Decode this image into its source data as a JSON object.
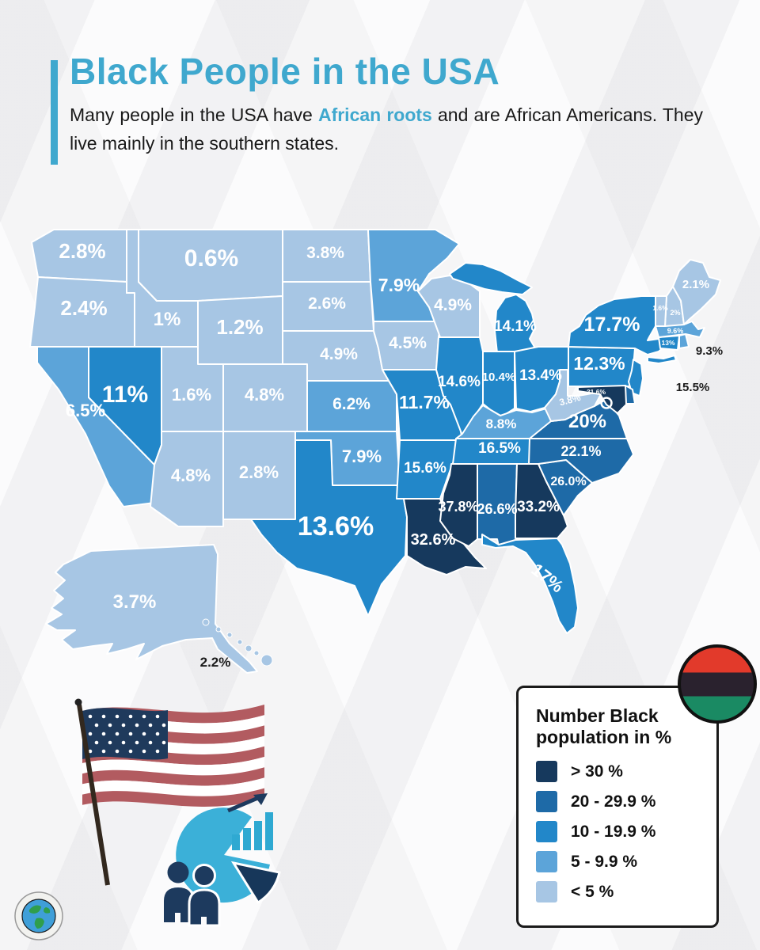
{
  "header": {
    "title": "Black People in the USA",
    "subtitle_part1": "Many people in the USA have ",
    "subtitle_highlight": "African roots",
    "subtitle_part2": " and are African Americans. They live mainly in the southern states."
  },
  "legend": {
    "title_line1": "Number Black",
    "title_line2": "population in %",
    "items": [
      {
        "label": "> 30 %",
        "color": "#16395d"
      },
      {
        "label": "20 - 29.9 %",
        "color": "#1e6aa7"
      },
      {
        "label": "10 - 19.9 %",
        "color": "#2287c9"
      },
      {
        "label": "5 - 9.9 %",
        "color": "#5ca4d9"
      },
      {
        "label": "< 5 %",
        "color": "#a7c6e4"
      }
    ]
  },
  "colors": {
    "accent": "#3fa8ce",
    "text": "#191919",
    "map_border": "#ffffff",
    "pan_african": [
      "#e23a2b",
      "#2a222e",
      "#1a8a63"
    ]
  },
  "map": {
    "states": [
      {
        "id": "WA",
        "label": "2.8%",
        "value": 2.8,
        "bucket": 4
      },
      {
        "id": "OR",
        "label": "2.4%",
        "value": 2.4,
        "bucket": 4
      },
      {
        "id": "CA",
        "label": "6.5%",
        "value": 6.5,
        "bucket": 3
      },
      {
        "id": "NV",
        "label": "11%",
        "value": 11,
        "bucket": 2
      },
      {
        "id": "ID",
        "label": "1%",
        "value": 1,
        "bucket": 4
      },
      {
        "id": "MT",
        "label": "0.6%",
        "value": 0.6,
        "bucket": 4
      },
      {
        "id": "WY",
        "label": "1.2%",
        "value": 1.2,
        "bucket": 4
      },
      {
        "id": "UT",
        "label": "1.6%",
        "value": 1.6,
        "bucket": 4
      },
      {
        "id": "CO",
        "label": "4.8%",
        "value": 4.8,
        "bucket": 4
      },
      {
        "id": "AZ",
        "label": "4.8%",
        "value": 4.8,
        "bucket": 4
      },
      {
        "id": "NM",
        "label": "2.8%",
        "value": 2.8,
        "bucket": 4
      },
      {
        "id": "ND",
        "label": "3.8%",
        "value": 3.8,
        "bucket": 4
      },
      {
        "id": "SD",
        "label": "2.6%",
        "value": 2.6,
        "bucket": 4
      },
      {
        "id": "NE",
        "label": "4.9%",
        "value": 4.9,
        "bucket": 4
      },
      {
        "id": "KS",
        "label": "6.2%",
        "value": 6.2,
        "bucket": 3
      },
      {
        "id": "OK",
        "label": "7.9%",
        "value": 7.9,
        "bucket": 3
      },
      {
        "id": "TX",
        "label": "13.6%",
        "value": 13.6,
        "bucket": 2
      },
      {
        "id": "MN",
        "label": "7.9%",
        "value": 7.9,
        "bucket": 3
      },
      {
        "id": "IA",
        "label": "4.5%",
        "value": 4.5,
        "bucket": 4
      },
      {
        "id": "MO",
        "label": "11.7%",
        "value": 11.7,
        "bucket": 2
      },
      {
        "id": "AR",
        "label": "15.6%",
        "value": 15.6,
        "bucket": 2
      },
      {
        "id": "LA",
        "label": "32.6%",
        "value": 32.6,
        "bucket": 0
      },
      {
        "id": "WI",
        "label": "4.9%",
        "value": 4.9,
        "bucket": 4
      },
      {
        "id": "IL",
        "label": "14.6%",
        "value": 14.6,
        "bucket": 2
      },
      {
        "id": "MS",
        "label": "37.8%",
        "value": 37.8,
        "bucket": 0
      },
      {
        "id": "MI",
        "label": "14.1%",
        "value": 14.1,
        "bucket": 2
      },
      {
        "id": "IN",
        "label": "10.4%",
        "value": 10.4,
        "bucket": 2
      },
      {
        "id": "OH",
        "label": "13.4%",
        "value": 13.4,
        "bucket": 2
      },
      {
        "id": "KY",
        "label": "8.8%",
        "value": 8.8,
        "bucket": 3
      },
      {
        "id": "TN",
        "label": "16.5%",
        "value": 16.5,
        "bucket": 2
      },
      {
        "id": "AL",
        "label": "26.6%",
        "value": 26.6,
        "bucket": 1
      },
      {
        "id": "GA",
        "label": "33.2%",
        "value": 33.2,
        "bucket": 0
      },
      {
        "id": "FL",
        "label": "17%",
        "value": 17,
        "bucket": 2
      },
      {
        "id": "SC",
        "label": "26.0%",
        "value": 26.0,
        "bucket": 1
      },
      {
        "id": "NC",
        "label": "22.1%",
        "value": 22.1,
        "bucket": 1
      },
      {
        "id": "VA",
        "label": "20%",
        "value": 20,
        "bucket": 1
      },
      {
        "id": "WV",
        "label": "3.8%",
        "value": 3.8,
        "bucket": 4
      },
      {
        "id": "PA",
        "label": "12.3%",
        "value": 12.3,
        "bucket": 2
      },
      {
        "id": "NY",
        "label": "17.7%",
        "value": 17.7,
        "bucket": 2
      },
      {
        "id": "NJ",
        "label": "15.5%",
        "value": 15.5,
        "bucket": 2,
        "outside": true
      },
      {
        "id": "MD",
        "label": "31.6%",
        "value": 31.6,
        "bucket": 0
      },
      {
        "id": "DE",
        "label": "",
        "value": null,
        "bucket": 1
      },
      {
        "id": "CT",
        "label": "13%",
        "value": 13,
        "bucket": 2
      },
      {
        "id": "RI",
        "label": "9.3%",
        "value": 9.3,
        "bucket": 3,
        "outside": true
      },
      {
        "id": "MA",
        "label": "9.6%",
        "value": 9.6,
        "bucket": 3
      },
      {
        "id": "NH",
        "label": "2%",
        "value": 2,
        "bucket": 4
      },
      {
        "id": "VT",
        "label": "1.6%",
        "value": 1.6,
        "bucket": 4
      },
      {
        "id": "ME",
        "label": "2.1%",
        "value": 2.1,
        "bucket": 4
      },
      {
        "id": "AK",
        "label": "3.7%",
        "value": 3.7,
        "bucket": 4
      },
      {
        "id": "HI",
        "label": "2.2%",
        "value": 2.2,
        "bucket": 4,
        "outside": true
      }
    ]
  }
}
